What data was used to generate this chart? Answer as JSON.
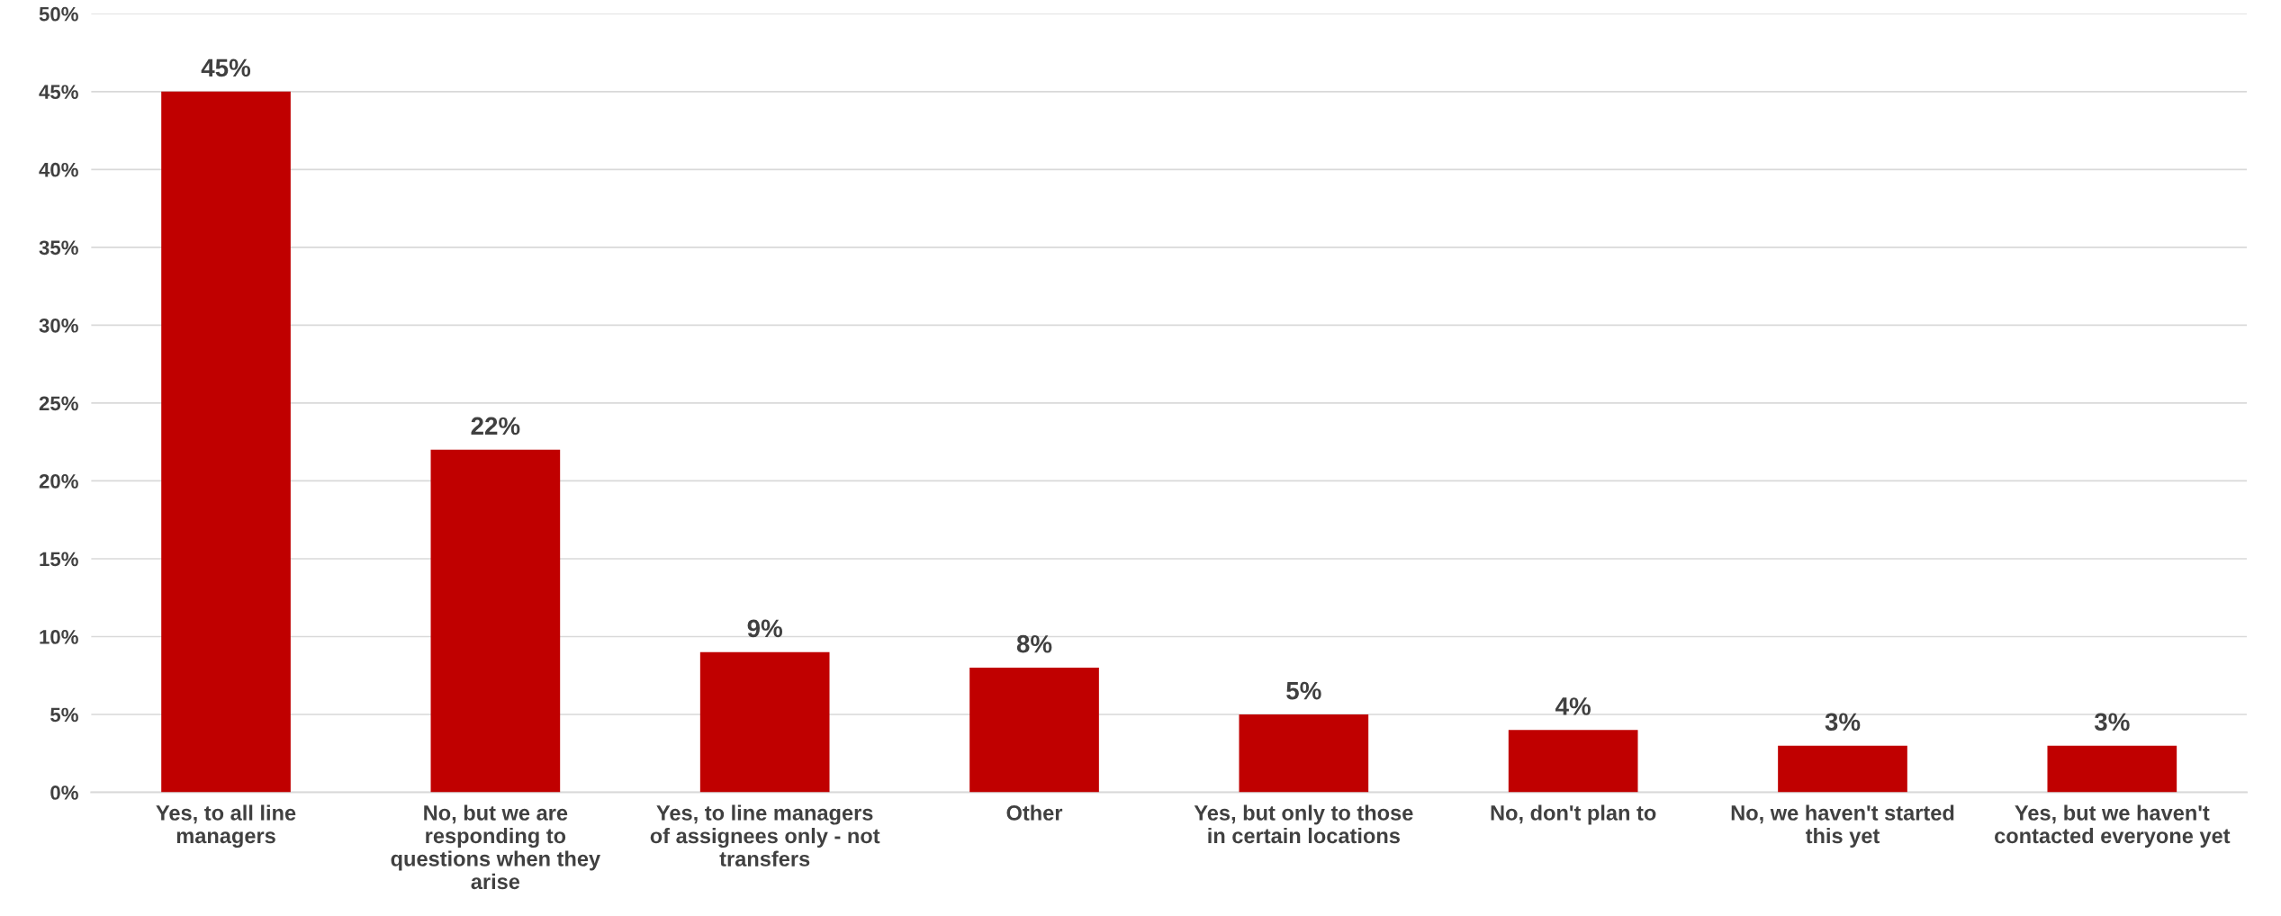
{
  "chart_data": {
    "type": "bar",
    "categories": [
      "Yes, to all line\nmanagers",
      "No, but we are\nresponding to\nquestions when they\narise",
      "Yes, to line managers\nof assignees only - not\ntransfers",
      "Other",
      "Yes, but only to those\nin certain locations",
      "No, don't plan to",
      "No, we haven't started\nthis yet",
      "Yes, but we haven't\ncontacted everyone yet"
    ],
    "values": [
      45,
      22,
      9,
      8,
      5,
      4,
      3,
      3
    ],
    "color": "#c00000",
    "value_labels": [
      "45%",
      "22%",
      "9%",
      "8%",
      "5%",
      "4%",
      "3%",
      "3%"
    ],
    "ylim": [
      0,
      50
    ],
    "yticks": [
      {
        "value": 0,
        "label": "0%"
      },
      {
        "value": 5,
        "label": "5%"
      },
      {
        "value": 10,
        "label": "10%"
      },
      {
        "value": 15,
        "label": "15%"
      },
      {
        "value": 20,
        "label": "20%"
      },
      {
        "value": 25,
        "label": "25%"
      },
      {
        "value": 30,
        "label": "30%"
      },
      {
        "value": 35,
        "label": "35%"
      },
      {
        "value": 40,
        "label": "40%"
      },
      {
        "value": 45,
        "label": "45%"
      },
      {
        "value": 50,
        "label": "50%"
      }
    ],
    "grid": "y",
    "legend": false
  }
}
